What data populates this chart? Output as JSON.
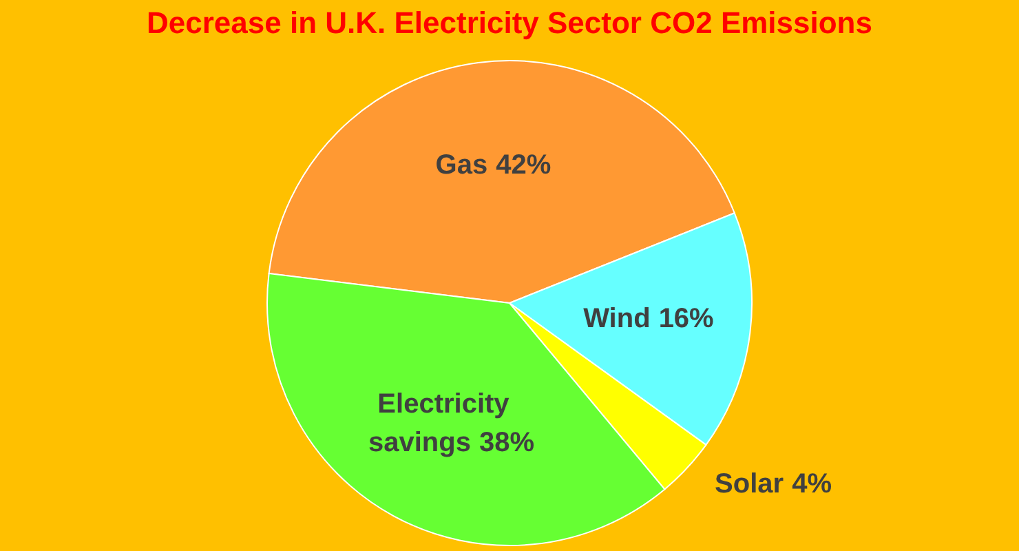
{
  "chart_data": {
    "type": "pie",
    "title": "Decrease in U.K. Electricity Sector CO2 Emissions",
    "categories": [
      "Gas",
      "Wind",
      "Solar",
      "Electricity savings"
    ],
    "values": [
      42,
      16,
      4,
      38
    ],
    "colors": [
      "#ff9933",
      "#66ffff",
      "#ffff00",
      "#66ff33"
    ],
    "value_labels": [
      "42%",
      "16%",
      "4%",
      "38%"
    ]
  }
}
